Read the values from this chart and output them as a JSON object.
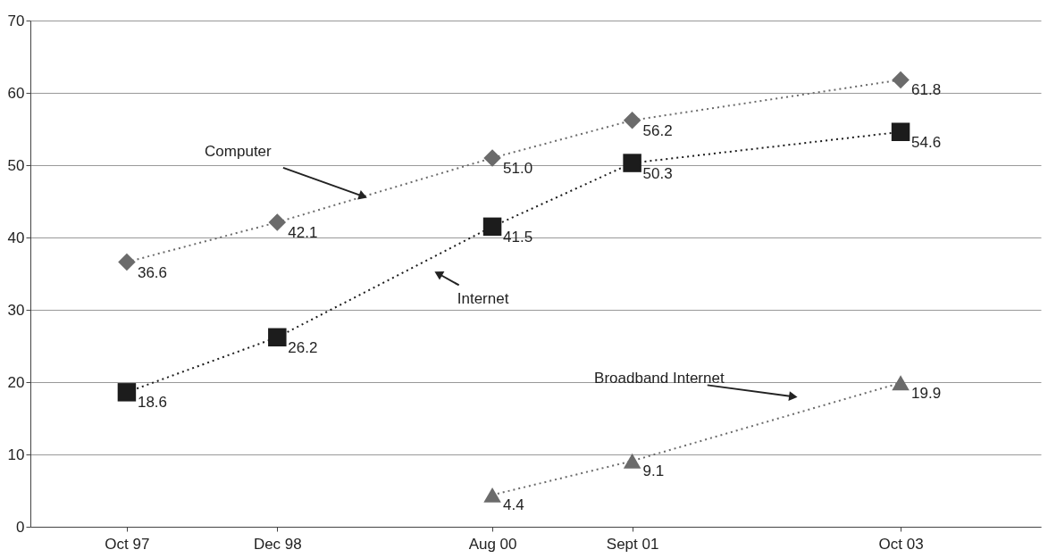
{
  "chart_data": {
    "type": "line",
    "x": [
      "1997-10",
      "1998-12",
      "2000-08",
      "2001-09",
      "2003-10"
    ],
    "xlim": [
      "1997-01",
      "2004-11"
    ],
    "xticks": [
      {
        "value": "1997-10",
        "label": "Oct 97"
      },
      {
        "value": "1998-12",
        "label": "Dec 98"
      },
      {
        "value": "2000-08",
        "label": "Aug 00"
      },
      {
        "value": "2001-09",
        "label": "Sept 01"
      },
      {
        "value": "2003-10",
        "label": "Oct 03"
      }
    ],
    "ylim": [
      0,
      70
    ],
    "yticks": [
      0,
      10,
      20,
      30,
      40,
      50,
      60,
      70
    ],
    "grid": "y",
    "line_style": "dotted",
    "series": [
      {
        "color": "#6b6b6b",
        "marker": "diamond",
        "values": [
          36.6,
          42.1,
          51.0,
          56.2,
          61.8
        ],
        "value_labels": [
          "36.6",
          "42.1",
          "51.0",
          "56.2",
          "61.8"
        ]
      },
      {
        "color": "#1c1c1c",
        "marker": "square",
        "values": [
          18.6,
          26.2,
          41.5,
          50.3,
          54.6
        ],
        "value_labels": [
          "18.6",
          "26.2",
          "41.5",
          "50.3",
          "54.6"
        ]
      },
      {
        "color": "#6b6b6b",
        "marker": "triangle",
        "values": [
          null,
          null,
          4.4,
          9.1,
          19.9
        ],
        "value_labels": [
          null,
          null,
          "4.4",
          "9.1",
          "19.9"
        ]
      }
    ],
    "annotations": [
      {
        "text": "Computer",
        "x": "1999-08",
        "y": 45.7
      },
      {
        "text": "Internet",
        "x": "2000-03",
        "y": 35
      },
      {
        "text": "Broadband Internet",
        "x": "2002-12",
        "y": 18
      }
    ]
  }
}
